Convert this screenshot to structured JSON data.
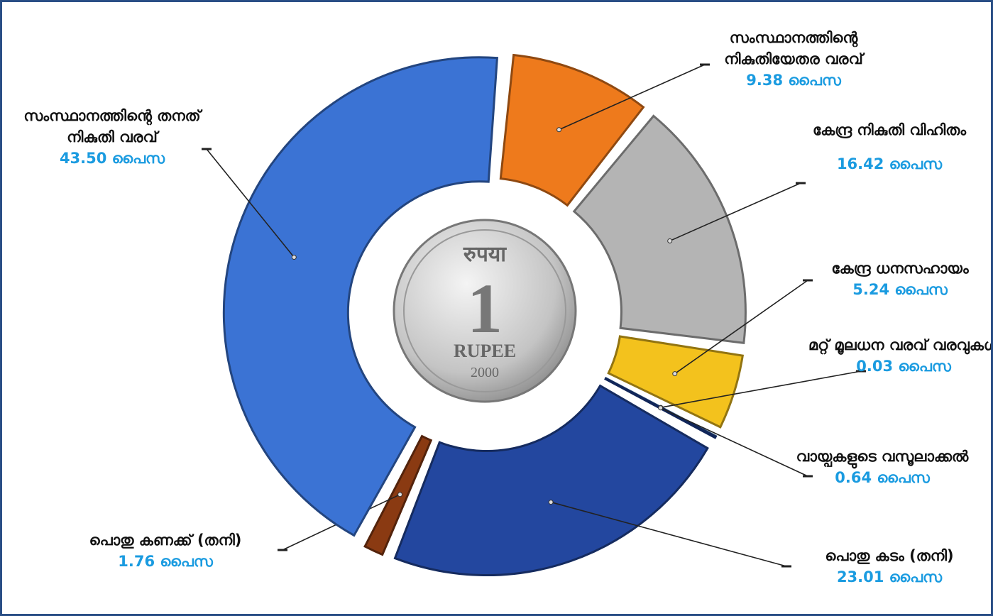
{
  "chart_data": {
    "type": "pie",
    "categories": [
      "സംസ്ഥാനത്തിന്റെ നികുതിയേതര വരവ്",
      "കേന്ദ്ര നികുതി വിഹിതം",
      "കേന്ദ്ര ധനസഹായം",
      "മറ്റ് മൂലധന വരവ് വരവുകൾ",
      "വായ്പകളുടെ വസൂലാക്കൽ",
      "പൊതു കടം (തനി)",
      "പൊതു കണക്ക് (തനി)",
      "സംസ്ഥാനത്തിന്റെ തനത് നികുതി വരവ്"
    ],
    "values": [
      9.38,
      16.42,
      5.24,
      0.03,
      0.64,
      23.01,
      1.76,
      43.5
    ],
    "value_labels": [
      "9.38 പൈസ",
      "16.42 പൈസ",
      "5.24 പൈസ",
      "0.03 പൈസ",
      "0.64 പൈസ",
      "23.01 പൈസ",
      "1.76 പൈസ",
      "43.50 പൈസ"
    ],
    "colors": [
      "#ee7a1c",
      "#b4b4b4",
      "#f3c21d",
      "#7db8e8",
      "#1d3f95",
      "#23479f",
      "#8a3a12",
      "#3b73d4"
    ]
  },
  "coin": {
    "script": "रुपया",
    "numeral": "1",
    "word": "RUPEE",
    "year": "2000"
  }
}
